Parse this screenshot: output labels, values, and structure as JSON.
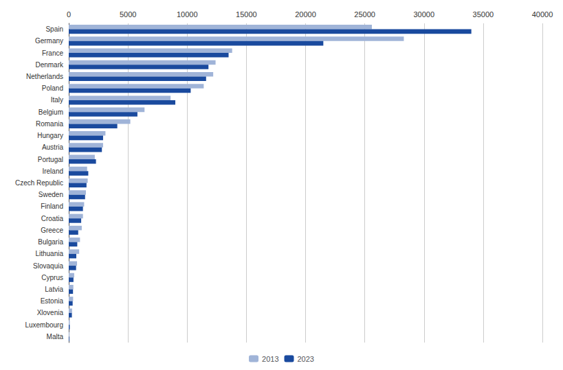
{
  "chart_data": {
    "type": "bar",
    "orientation": "horizontal",
    "categories": [
      "Spain",
      "Germany",
      "France",
      "Denmark",
      "Netherlands",
      "Poland",
      "Italy",
      "Belgium",
      "Romania",
      "Hungary",
      "Austria",
      "Portugal",
      "Ireland",
      "Czech Republic",
      "Sweden",
      "Finland",
      "Croatia",
      "Greece",
      "Bulgaria",
      "Lithuania",
      "Slovaquia",
      "Cyprus",
      "Latvia",
      "Estonia",
      "Xlovenia",
      "Luxembourg",
      "Malta"
    ],
    "series": [
      {
        "name": "2013",
        "color": "#a0b4d8",
        "values": [
          25600,
          28300,
          13800,
          12400,
          12200,
          11400,
          8600,
          6400,
          5200,
          3100,
          2900,
          2200,
          1550,
          1600,
          1450,
          1300,
          1200,
          1100,
          950,
          880,
          700,
          460,
          390,
          370,
          280,
          90,
          50
        ]
      },
      {
        "name": "2023",
        "color": "#1a4a9e",
        "values": [
          34000,
          21500,
          13500,
          11800,
          11600,
          10300,
          9000,
          5800,
          4100,
          2900,
          2800,
          2300,
          1650,
          1500,
          1380,
          1200,
          1050,
          800,
          720,
          640,
          620,
          400,
          360,
          330,
          265,
          85,
          48
        ]
      }
    ],
    "xlim": [
      0,
      40000
    ],
    "xticks": [
      0,
      5000,
      10000,
      15000,
      20000,
      25000,
      30000,
      35000,
      40000
    ],
    "grid": true,
    "legend": "bottom"
  }
}
